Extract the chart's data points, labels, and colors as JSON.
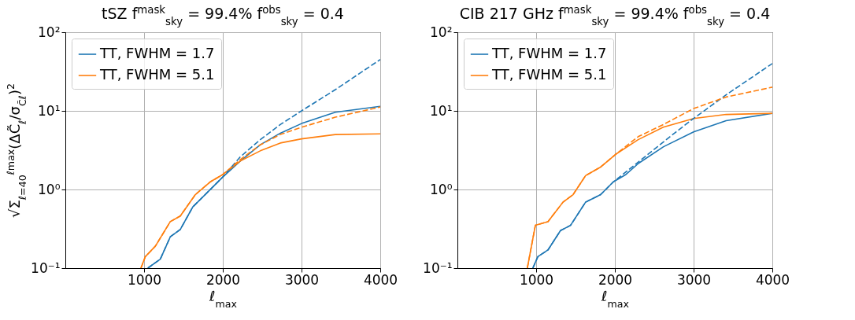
{
  "chart_data": [
    {
      "type": "line",
      "title": "tSZ f$^{mask}$$_{sky}$ = 99.4% f$^{obs}$$_{sky}$ = 0.4",
      "xlabel": "ℓ$_{max}$",
      "ylabel": "√Σ$_{ℓ=40}$$^{ℓmax}$(ΔC̃$_{ℓ}$/σ$_{C̃ℓ}$)$^{2}$",
      "log": "y",
      "grid": true,
      "legend": "top left",
      "xlim": [
        0,
        4000
      ],
      "xticks": [
        1000,
        2000,
        3000,
        4000
      ],
      "ylim": [
        0.1,
        100
      ],
      "yticks": [
        {
          "value": 0.1,
          "label": "10⁻¹"
        },
        {
          "value": 1,
          "label": "10⁰"
        },
        {
          "value": 10,
          "label": "10¹"
        },
        {
          "value": 100,
          "label": "10²"
        }
      ],
      "series": [
        {
          "name": "TT, FWHM = 1.7",
          "color": "#1f77b4",
          "line_style": "solid",
          "x": [
            1048,
            1206,
            1333,
            1460,
            1619,
            1810,
            2000,
            2222,
            2476,
            2730,
            3000,
            3429,
            4000
          ],
          "values": [
            0.1,
            0.13,
            0.25,
            0.31,
            0.6,
            0.93,
            1.44,
            2.3,
            3.7,
            5.2,
            6.9,
            9.6,
            11.4
          ]
        },
        {
          "name": "TT, FWHM = 5.1",
          "color": "#ff7f0e",
          "line_style": "solid",
          "x": [
            960,
            1016,
            1143,
            1333,
            1460,
            1651,
            1841,
            2000,
            2222,
            2476,
            2730,
            3000,
            3429,
            4000
          ],
          "values": [
            0.1,
            0.14,
            0.19,
            0.39,
            0.46,
            0.86,
            1.25,
            1.55,
            2.3,
            3.1,
            3.9,
            4.4,
            5.0,
            5.1
          ]
        },
        {
          "color": "#1f77b4",
          "line_style": "dashed",
          "x": [
            1048,
            1206,
            1333,
            1460,
            1619,
            1810,
            2000,
            2222,
            2476,
            2730,
            3000,
            3429,
            4000
          ],
          "values": [
            0.1,
            0.13,
            0.25,
            0.31,
            0.6,
            0.93,
            1.44,
            2.6,
            4.3,
            6.7,
            10,
            18.6,
            45
          ]
        },
        {
          "color": "#ff7f0e",
          "line_style": "dashed",
          "x": [
            960,
            1016,
            1143,
            1333,
            1460,
            1651,
            1841,
            2000,
            2222,
            2476,
            2730,
            3000,
            3429,
            4000
          ],
          "values": [
            0.1,
            0.14,
            0.19,
            0.39,
            0.46,
            0.86,
            1.25,
            1.55,
            2.4,
            3.7,
            5.0,
            6.2,
            8.3,
            11.2
          ]
        }
      ]
    },
    {
      "type": "line",
      "title": "CIB 217 GHz f$^{mask}$$_{sky}$ = 99.4% f$^{obs}$$_{sky}$ = 0.4",
      "xlabel": "ℓ$_{max}$",
      "log": "y",
      "grid": true,
      "legend": "top left",
      "xlim": [
        0,
        4000
      ],
      "xticks": [
        1000,
        2000,
        3000,
        4000
      ],
      "ylim": [
        0.1,
        100
      ],
      "yticks": [
        {
          "value": 0.1,
          "label": "10⁻¹"
        },
        {
          "value": 1,
          "label": "10⁰"
        },
        {
          "value": 10,
          "label": "10¹"
        },
        {
          "value": 100,
          "label": "10²"
        }
      ],
      "series": [
        {
          "name": "TT, FWHM = 1.7",
          "color": "#1f77b4",
          "line_style": "solid",
          "x": [
            958,
            1022,
            1150,
            1309,
            1437,
            1628,
            1819,
            1981,
            2140,
            2300,
            2618,
            3000,
            3413,
            4000
          ],
          "values": [
            0.1,
            0.14,
            0.17,
            0.3,
            0.35,
            0.69,
            0.86,
            1.25,
            1.55,
            2.15,
            3.5,
            5.4,
            7.5,
            9.3
          ]
        },
        {
          "name": "TT, FWHM = 5.1",
          "color": "#ff7f0e",
          "line_style": "solid",
          "x": [
            888,
            990,
            1150,
            1341,
            1469,
            1628,
            1819,
            2010,
            2296,
            2615,
            3000,
            3413,
            4000
          ],
          "values": [
            0.1,
            0.35,
            0.39,
            0.69,
            0.86,
            1.5,
            1.93,
            2.8,
            4.3,
            6.2,
            8.0,
            9.0,
            9.3
          ]
        },
        {
          "color": "#1f77b4",
          "line_style": "dashed",
          "x": [
            958,
            1022,
            1150,
            1309,
            1437,
            1628,
            1819,
            1981,
            2140,
            2458,
            2777,
            3000,
            3413,
            4000
          ],
          "values": [
            0.1,
            0.14,
            0.17,
            0.3,
            0.35,
            0.69,
            0.86,
            1.25,
            1.67,
            3.0,
            5.4,
            8.0,
            16,
            40
          ]
        },
        {
          "color": "#ff7f0e",
          "line_style": "dashed",
          "x": [
            888,
            990,
            1150,
            1341,
            1469,
            1628,
            1819,
            2010,
            2296,
            2615,
            3000,
            3413,
            4000
          ],
          "values": [
            0.1,
            0.35,
            0.39,
            0.69,
            0.86,
            1.5,
            1.93,
            2.8,
            4.7,
            6.7,
            10.7,
            15,
            20
          ]
        }
      ]
    }
  ]
}
